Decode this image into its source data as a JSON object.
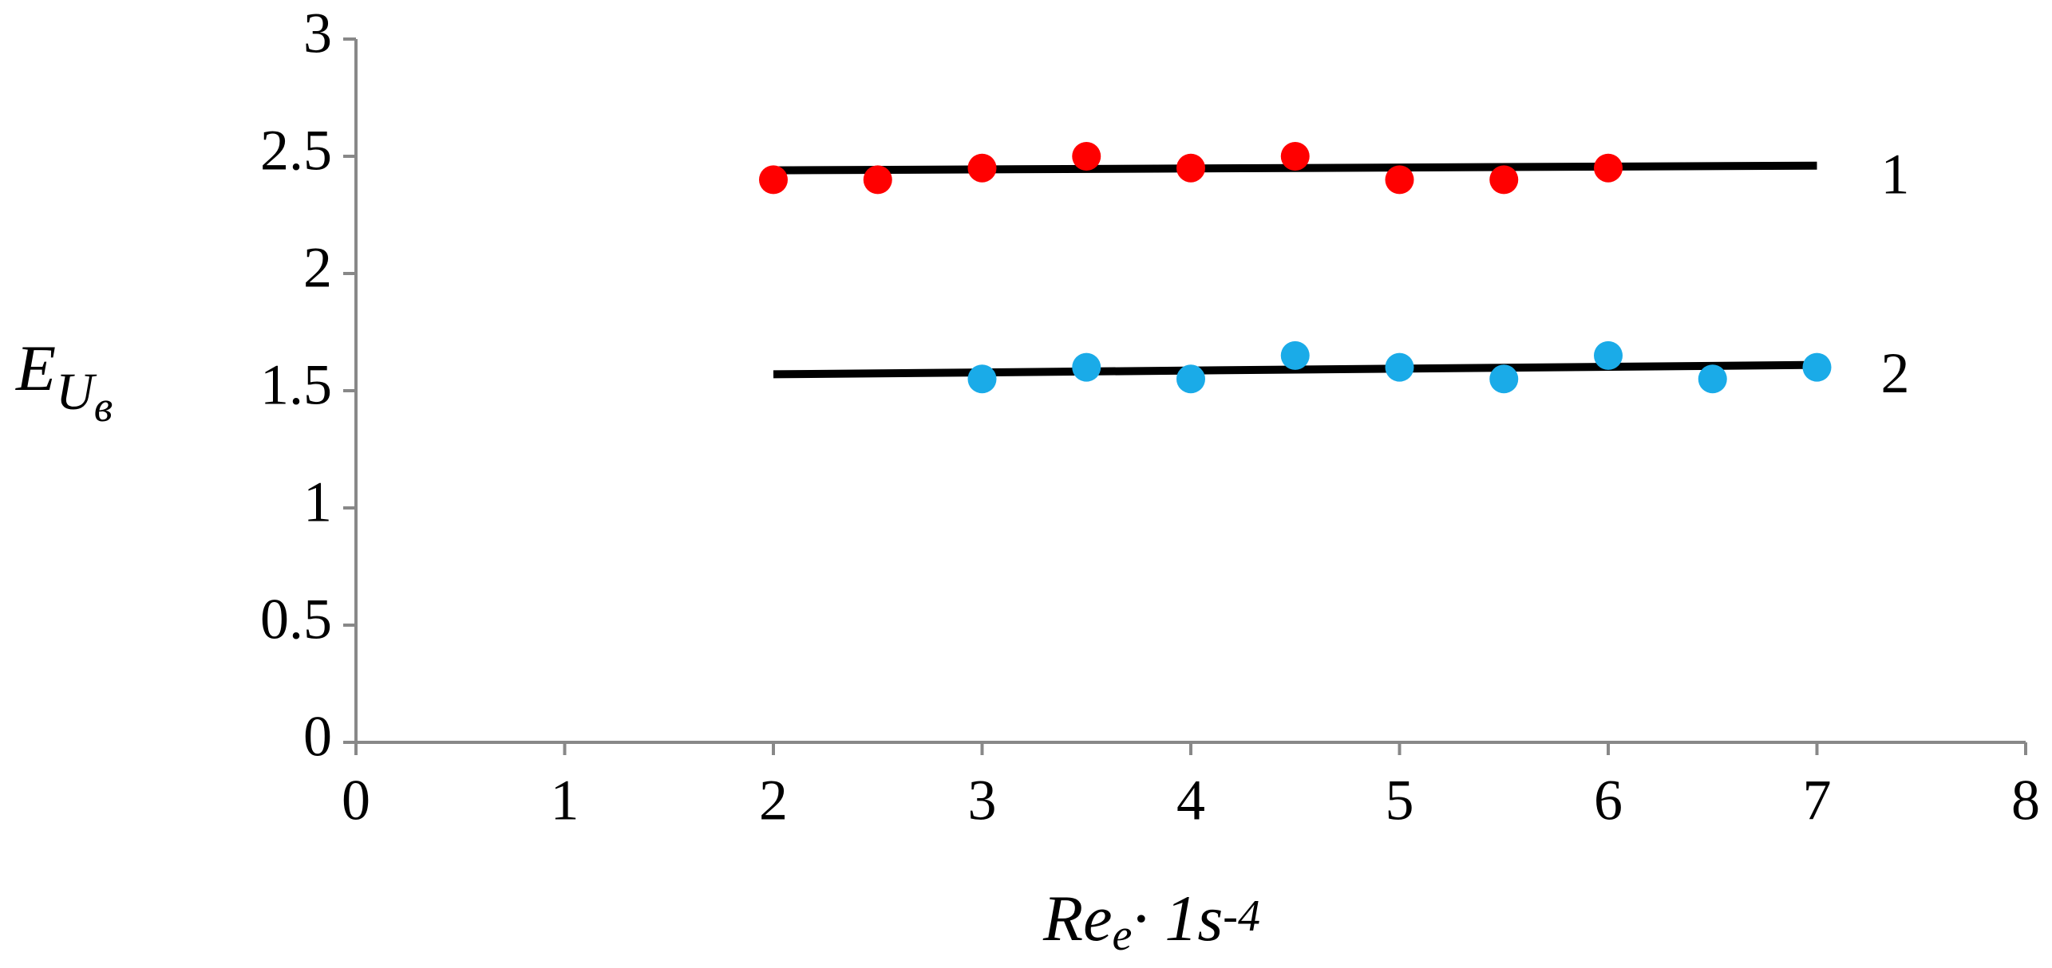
{
  "chart_data": {
    "type": "scatter",
    "xlabel": {
      "base": "Re",
      "sub": "e",
      "rest": "· 1s",
      "sup": "-4"
    },
    "ylabel": {
      "base": "E",
      "sub": "U",
      "subsub": "в"
    },
    "xlim": [
      0,
      8
    ],
    "xticks": [
      0,
      1,
      2,
      3,
      4,
      5,
      6,
      7,
      8
    ],
    "ylim": [
      0,
      3
    ],
    "yticks": [
      0,
      0.5,
      1,
      1.5,
      2,
      2.5,
      3
    ],
    "series": [
      {
        "color": "#ff0000",
        "x": [
          2,
          2.5,
          3,
          3.5,
          4,
          4.5,
          5,
          5.5,
          6
        ],
        "values": [
          2.4,
          2.4,
          2.45,
          2.5,
          2.45,
          2.5,
          2.4,
          2.4,
          2.45
        ]
      },
      {
        "color": "#1aabe8",
        "x": [
          3,
          3.5,
          4,
          4.5,
          5,
          5.5,
          6,
          6.5,
          7
        ],
        "values": [
          1.55,
          1.6,
          1.55,
          1.65,
          1.6,
          1.55,
          1.65,
          1.55,
          1.6
        ]
      }
    ],
    "trendlines": [
      {
        "label": "1",
        "color": "#000000",
        "x": [
          2,
          7
        ],
        "values": [
          2.44,
          2.46
        ]
      },
      {
        "label": "2",
        "color": "#000000",
        "x": [
          2,
          7
        ],
        "values": [
          1.57,
          1.61
        ]
      }
    ]
  }
}
